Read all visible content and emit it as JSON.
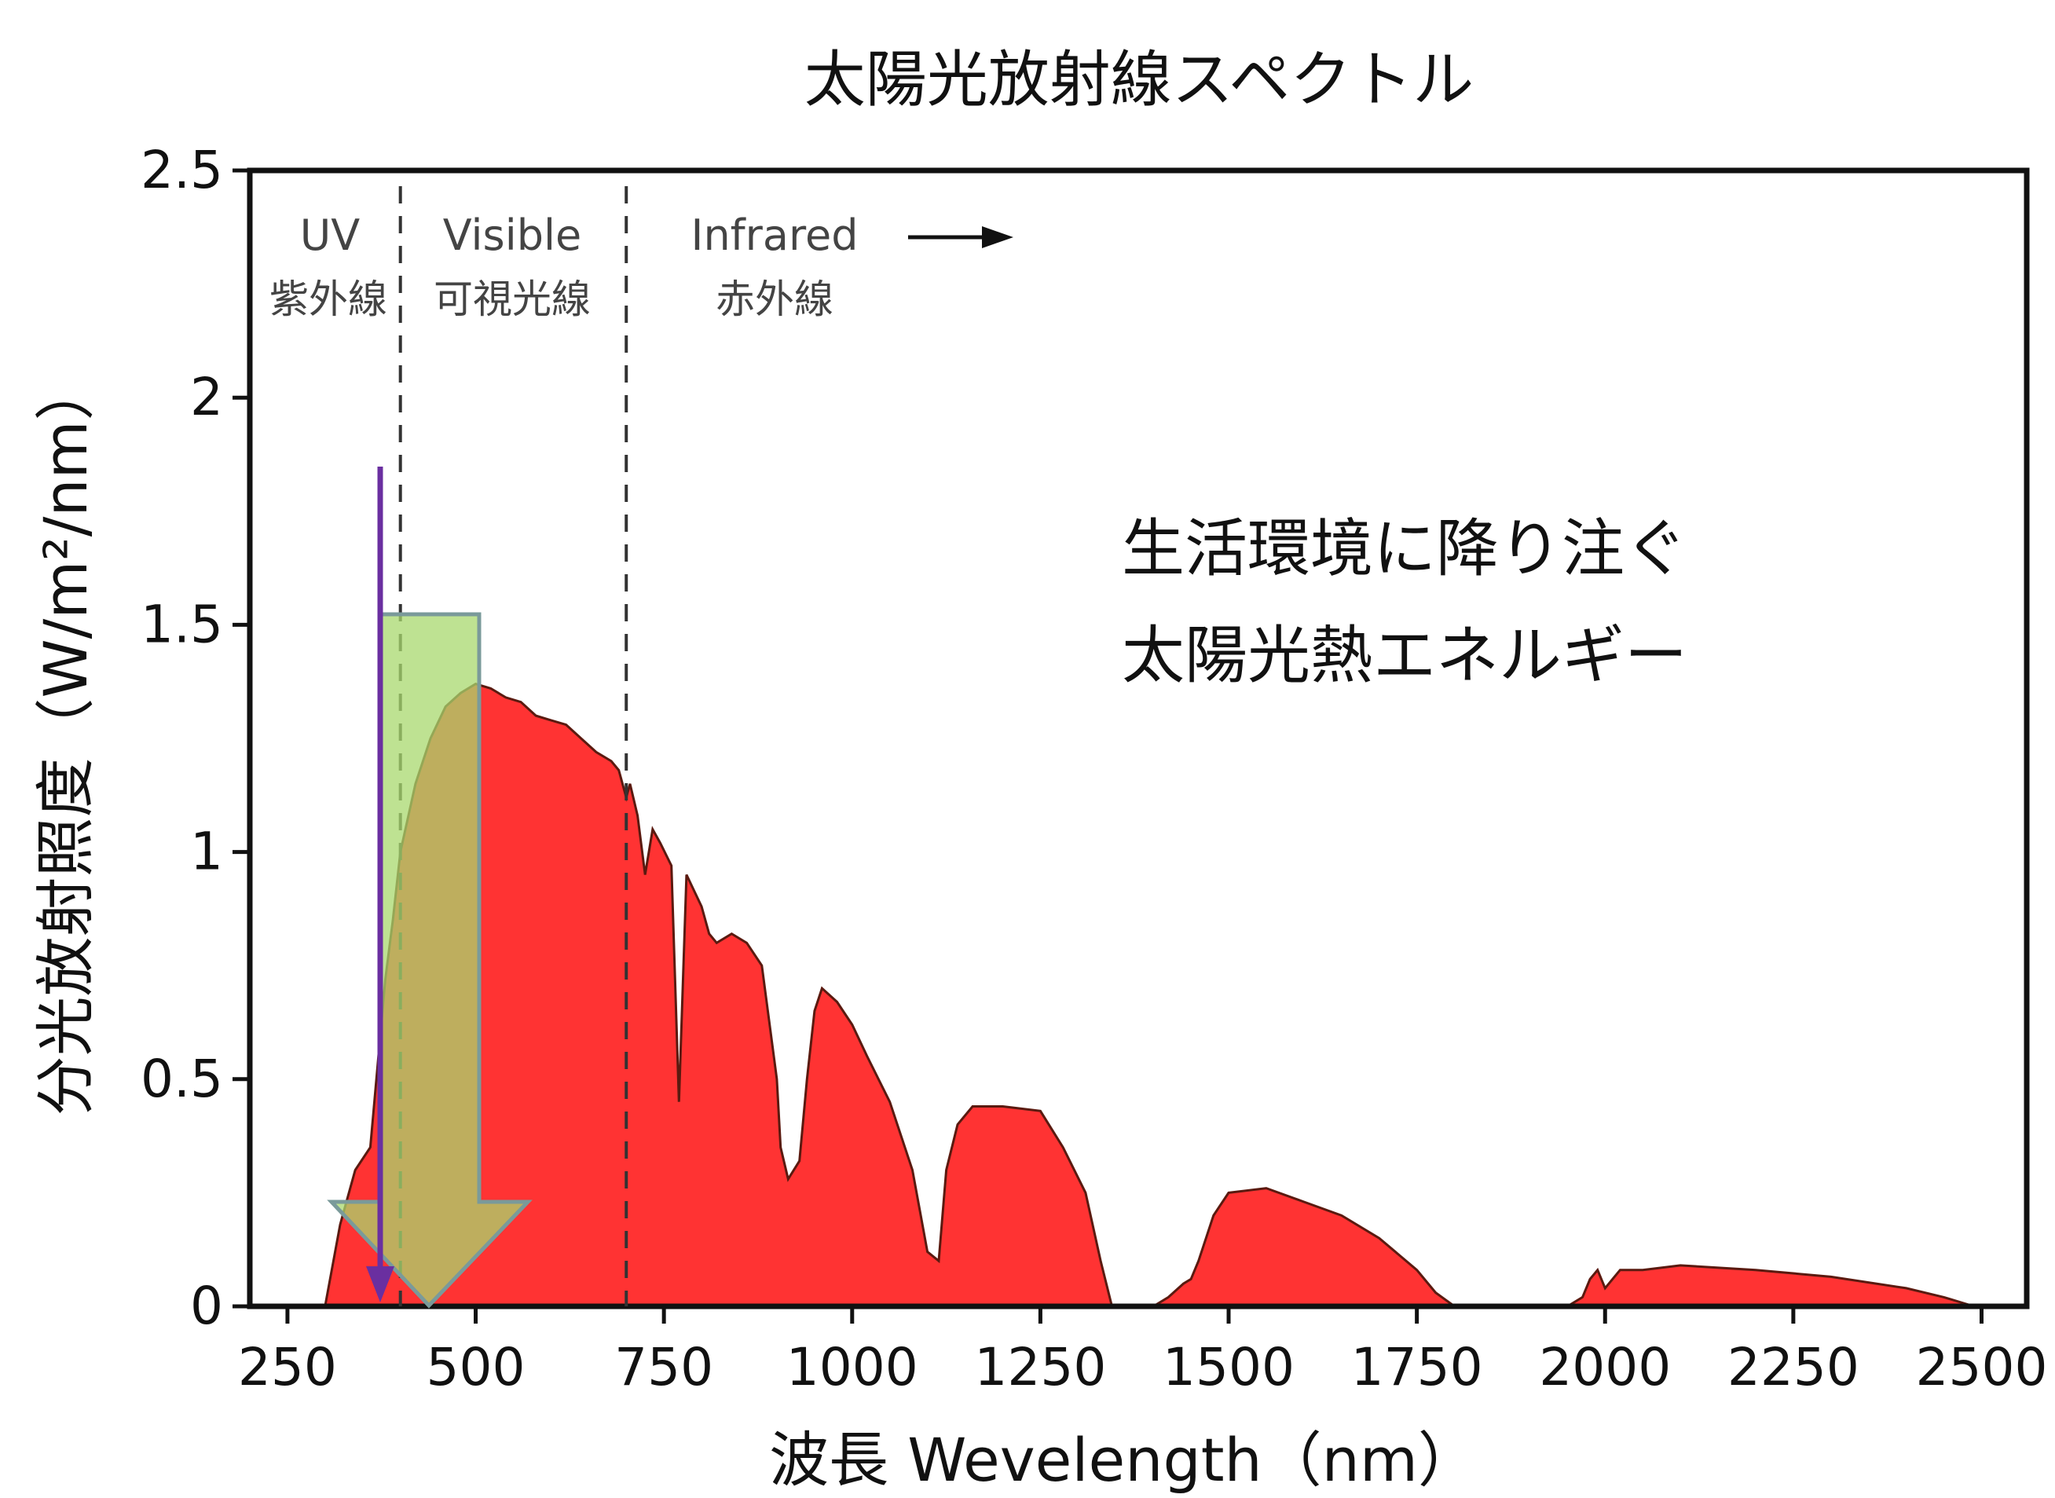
{
  "chart_data": {
    "type": "area",
    "title": "太陽光放射線スペクトル",
    "xlabel": "波長 Wevelength（nm）",
    "ylabel": "分光放射照度（W/m²/nm）",
    "xlim": [
      200,
      2560
    ],
    "ylim": [
      0,
      2.5
    ],
    "x_ticks": [
      250,
      500,
      750,
      1000,
      1250,
      1500,
      1750,
      2000,
      2250,
      2500
    ],
    "y_ticks": [
      0,
      0.5,
      1,
      1.5,
      2,
      2.5
    ],
    "y_tick_labels": [
      "0",
      "0.5",
      "1",
      "1.5",
      "2",
      "2.5"
    ],
    "fill_color": "#ff3333",
    "series": [
      {
        "x": [
          300,
          320,
          340,
          360,
          380,
          390,
          400,
          420,
          440,
          460,
          480,
          500,
          520,
          540,
          560,
          580,
          600,
          620,
          640,
          660,
          680,
          690,
          700,
          705,
          715,
          725,
          735,
          745,
          760,
          770,
          780,
          800,
          810,
          820,
          840,
          860,
          880,
          900,
          905,
          915,
          930,
          940,
          950,
          960,
          980,
          1000,
          1020,
          1050,
          1080,
          1100,
          1115,
          1125,
          1140,
          1160,
          1200,
          1250,
          1280,
          1310,
          1330,
          1345,
          1350,
          1400,
          1420,
          1440,
          1450,
          1460,
          1480,
          1500,
          1550,
          1600,
          1650,
          1700,
          1750,
          1775,
          1800,
          1950,
          1970,
          1980,
          1990,
          2000,
          2010,
          2020,
          2050,
          2100,
          2200,
          2300,
          2400,
          2450,
          2490
        ],
        "y": [
          0,
          0.18,
          0.3,
          0.35,
          0.72,
          0.85,
          1.0,
          1.15,
          1.25,
          1.32,
          1.35,
          1.37,
          1.36,
          1.34,
          1.33,
          1.3,
          1.29,
          1.28,
          1.25,
          1.22,
          1.2,
          1.18,
          1.12,
          1.15,
          1.08,
          0.95,
          1.05,
          1.02,
          0.97,
          0.45,
          0.95,
          0.88,
          0.82,
          0.8,
          0.82,
          0.8,
          0.75,
          0.5,
          0.35,
          0.28,
          0.32,
          0.5,
          0.65,
          0.7,
          0.67,
          0.62,
          0.55,
          0.45,
          0.3,
          0.12,
          0.1,
          0.3,
          0.4,
          0.44,
          0.44,
          0.43,
          0.35,
          0.25,
          0.1,
          0.0,
          0,
          0,
          0.02,
          0.05,
          0.06,
          0.1,
          0.2,
          0.25,
          0.26,
          0.23,
          0.2,
          0.15,
          0.08,
          0.03,
          0,
          0,
          0.02,
          0.06,
          0.08,
          0.04,
          0.06,
          0.08,
          0.08,
          0.09,
          0.08,
          0.065,
          0.04,
          0.02,
          0
        ]
      }
    ],
    "regions": [
      {
        "label_en": "UV",
        "label_ja": "紫外線"
      },
      {
        "label_en": "Visible",
        "label_ja": "可視光線"
      },
      {
        "label_en": "Infrared",
        "label_ja": "赤外線"
      }
    ],
    "region_boundaries": [
      400,
      700
    ],
    "annotation": {
      "line1": "生活環境に降り注ぐ",
      "line2": "太陽光熱エネルギー"
    },
    "arrow_colors": {
      "block_fill": "#a8d86e",
      "block_stroke": "#7a9a9a",
      "thin_arrow": "#6a2fa0"
    }
  }
}
